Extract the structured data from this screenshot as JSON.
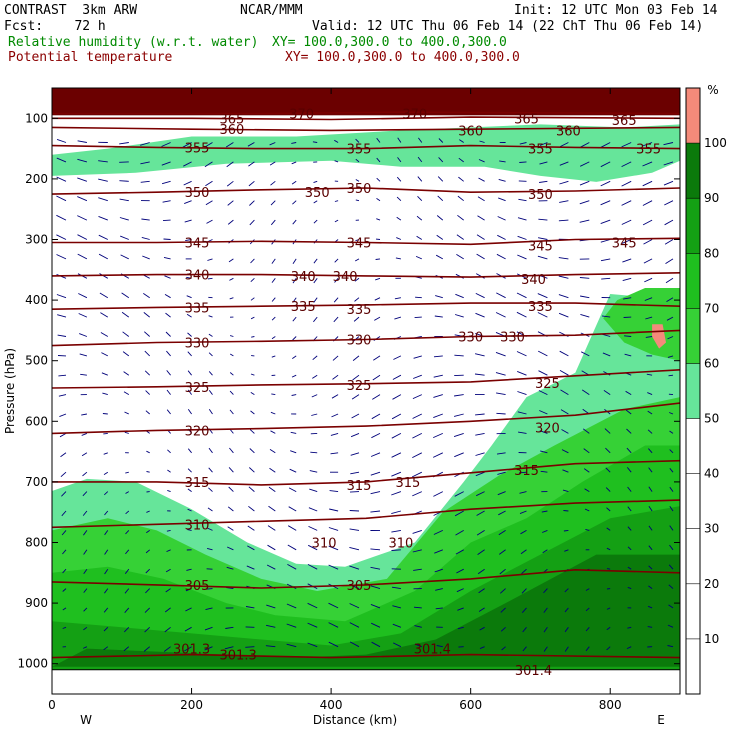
{
  "header": {
    "line1_left": "CONTRAST  3km ARW",
    "line1_mid": "NCAR/MMM",
    "line1_right": "Init: 12 UTC Mon 03 Feb 14",
    "line2_left": "Fcst:    72 h",
    "line2_right": "Valid: 12 UTC Thu 06 Feb 14 (22 ChT Thu 06 Feb 14)",
    "line3_left": "Relative humidity (w.r.t. water)",
    "line3_right": "XY= 100.0,300.0 to 400.0,300.0",
    "line4_left": "Potential temperature",
    "line4_right": "XY= 100.0,300.0 to 400.0,300.0"
  },
  "colors": {
    "rh_fill": [
      "#ffffff",
      "#ffffff",
      "#ffffff",
      "#ffffff",
      "#ffffff",
      "#66e59a",
      "#36d136",
      "#1fbf1f",
      "#14a014",
      "#0b7a0b",
      "#f48a7a"
    ],
    "theta_line": "#7a0000",
    "wind_arrow": "#00007a",
    "top_band": "#6b0000"
  },
  "chart_data": {
    "type": "heatmap",
    "xlabel": "Distance (km)",
    "ylabel": "Pressure (hPa)",
    "xlim": [
      0,
      900
    ],
    "ylim": [
      1050,
      50
    ],
    "x_ticks": [
      0,
      200,
      400,
      600,
      800
    ],
    "x_tick_labels": [
      "0",
      "200",
      "400",
      "600",
      "800"
    ],
    "y_ticks": [
      100,
      200,
      300,
      400,
      500,
      600,
      700,
      800,
      900,
      1000
    ],
    "y_tick_labels": [
      "100",
      "200",
      "300",
      "400",
      "500",
      "600",
      "700",
      "800",
      "900",
      "1000"
    ],
    "x_end_labels": {
      "left": "W",
      "right": "E"
    },
    "colorbar": {
      "unit": "%",
      "levels": [
        10,
        20,
        30,
        40,
        50,
        60,
        70,
        80,
        90,
        100
      ],
      "labels": [
        "10",
        "20",
        "30",
        "40",
        "50",
        "60",
        "70",
        "80",
        "90",
        "100"
      ]
    },
    "isentropes": [
      {
        "value": 301,
        "label": "301.3",
        "points": [
          [
            0,
            990
          ],
          [
            200,
            985
          ],
          [
            400,
            990
          ],
          [
            600,
            985
          ],
          [
            900,
            990
          ]
        ]
      },
      {
        "value": 305,
        "label": "305",
        "points": [
          [
            0,
            865
          ],
          [
            150,
            870
          ],
          [
            300,
            875
          ],
          [
            450,
            870
          ],
          [
            600,
            860
          ],
          [
            750,
            845
          ],
          [
            900,
            850
          ]
        ]
      },
      {
        "value": 310,
        "label": "310",
        "points": [
          [
            0,
            775
          ],
          [
            150,
            770
          ],
          [
            300,
            765
          ],
          [
            450,
            760
          ],
          [
            600,
            745
          ],
          [
            750,
            735
          ],
          [
            900,
            730
          ]
        ]
      },
      {
        "value": 315,
        "label": "315",
        "points": [
          [
            0,
            700
          ],
          [
            150,
            700
          ],
          [
            300,
            705
          ],
          [
            450,
            700
          ],
          [
            600,
            685
          ],
          [
            750,
            670
          ],
          [
            900,
            665
          ]
        ]
      },
      {
        "value": 320,
        "label": "320",
        "points": [
          [
            0,
            620
          ],
          [
            150,
            615
          ],
          [
            300,
            612
          ],
          [
            450,
            608
          ],
          [
            600,
            600
          ],
          [
            750,
            590
          ],
          [
            900,
            570
          ]
        ]
      },
      {
        "value": 325,
        "label": "325",
        "points": [
          [
            0,
            545
          ],
          [
            150,
            543
          ],
          [
            300,
            540
          ],
          [
            450,
            538
          ],
          [
            600,
            535
          ],
          [
            750,
            525
          ],
          [
            900,
            515
          ]
        ]
      },
      {
        "value": 330,
        "label": "330",
        "points": [
          [
            0,
            475
          ],
          [
            150,
            470
          ],
          [
            300,
            468
          ],
          [
            450,
            465
          ],
          [
            600,
            460
          ],
          [
            750,
            458
          ],
          [
            900,
            450
          ]
        ]
      },
      {
        "value": 335,
        "label": "335",
        "points": [
          [
            0,
            415
          ],
          [
            150,
            412
          ],
          [
            300,
            410
          ],
          [
            450,
            408
          ],
          [
            600,
            405
          ],
          [
            750,
            405
          ],
          [
            900,
            410
          ]
        ]
      },
      {
        "value": 340,
        "label": "340",
        "points": [
          [
            0,
            360
          ],
          [
            150,
            358
          ],
          [
            300,
            358
          ],
          [
            450,
            360
          ],
          [
            600,
            362
          ],
          [
            750,
            358
          ],
          [
            900,
            355
          ]
        ]
      },
      {
        "value": 345,
        "label": "345",
        "points": [
          [
            0,
            305
          ],
          [
            150,
            305
          ],
          [
            300,
            303
          ],
          [
            450,
            305
          ],
          [
            600,
            308
          ],
          [
            750,
            300
          ],
          [
            900,
            298
          ]
        ]
      },
      {
        "value": 350,
        "label": "350",
        "points": [
          [
            0,
            225
          ],
          [
            150,
            222
          ],
          [
            300,
            218
          ],
          [
            450,
            215
          ],
          [
            600,
            222
          ],
          [
            750,
            220
          ],
          [
            900,
            215
          ]
        ]
      },
      {
        "value": 355,
        "label": "355",
        "points": [
          [
            0,
            145
          ],
          [
            150,
            148
          ],
          [
            300,
            150
          ],
          [
            450,
            150
          ],
          [
            600,
            145
          ],
          [
            750,
            148
          ],
          [
            900,
            150
          ]
        ]
      },
      {
        "value": 360,
        "label": "360",
        "points": [
          [
            0,
            115
          ],
          [
            200,
            118
          ],
          [
            400,
            120
          ],
          [
            600,
            118
          ],
          [
            900,
            115
          ]
        ]
      },
      {
        "value": 365,
        "label": "365",
        "points": [
          [
            0,
            100
          ],
          [
            200,
            100
          ],
          [
            400,
            102
          ],
          [
            600,
            98
          ],
          [
            900,
            100
          ]
        ]
      },
      {
        "value": 370,
        "label": "370",
        "points": [
          [
            0,
            92
          ],
          [
            300,
            92
          ],
          [
            500,
            90
          ],
          [
            900,
            92
          ]
        ]
      }
    ],
    "extra_labels": [
      {
        "text": "301.3",
        "x": 200,
        "p": 975
      },
      {
        "text": "301.4",
        "x": 545,
        "p": 975
      },
      {
        "text": "301.4",
        "x": 690,
        "p": 1010
      },
      {
        "text": "305",
        "x": 440,
        "p": 870
      },
      {
        "text": "310",
        "x": 500,
        "p": 800
      },
      {
        "text": "310",
        "x": 390,
        "p": 800
      },
      {
        "text": "315",
        "x": 510,
        "p": 700
      },
      {
        "text": "315",
        "x": 440,
        "p": 705
      },
      {
        "text": "315",
        "x": 680,
        "p": 680
      },
      {
        "text": "320",
        "x": 710,
        "p": 610
      },
      {
        "text": "325",
        "x": 440,
        "p": 540
      },
      {
        "text": "325",
        "x": 710,
        "p": 537
      },
      {
        "text": "330",
        "x": 440,
        "p": 465
      },
      {
        "text": "330",
        "x": 600,
        "p": 460
      },
      {
        "text": "330",
        "x": 660,
        "p": 460
      },
      {
        "text": "335",
        "x": 360,
        "p": 410
      },
      {
        "text": "335",
        "x": 440,
        "p": 415
      },
      {
        "text": "335",
        "x": 700,
        "p": 410
      },
      {
        "text": "340",
        "x": 360,
        "p": 360
      },
      {
        "text": "340",
        "x": 420,
        "p": 360
      },
      {
        "text": "340",
        "x": 690,
        "p": 365
      },
      {
        "text": "345",
        "x": 440,
        "p": 305
      },
      {
        "text": "345",
        "x": 700,
        "p": 310
      },
      {
        "text": "345",
        "x": 820,
        "p": 305
      },
      {
        "text": "350",
        "x": 380,
        "p": 222
      },
      {
        "text": "350",
        "x": 440,
        "p": 215
      },
      {
        "text": "350",
        "x": 700,
        "p": 225
      },
      {
        "text": "355",
        "x": 440,
        "p": 150
      },
      {
        "text": "355",
        "x": 700,
        "p": 150
      },
      {
        "text": "355",
        "x": 855,
        "p": 150
      },
      {
        "text": "360",
        "x": 600,
        "p": 120
      },
      {
        "text": "360",
        "x": 740,
        "p": 120
      },
      {
        "text": "365",
        "x": 680,
        "p": 100
      },
      {
        "text": "365",
        "x": 820,
        "p": 103
      },
      {
        "text": "370",
        "x": 520,
        "p": 92
      }
    ],
    "rh_regions": [
      {
        "level": 5,
        "points": [
          [
            0,
            1010
          ],
          [
            0,
            715
          ],
          [
            50,
            695
          ],
          [
            120,
            700
          ],
          [
            200,
            745
          ],
          [
            280,
            800
          ],
          [
            350,
            835
          ],
          [
            420,
            840
          ],
          [
            520,
            800
          ],
          [
            590,
            700
          ],
          [
            630,
            640
          ],
          [
            680,
            560
          ],
          [
            750,
            520
          ],
          [
            800,
            390
          ],
          [
            900,
            400
          ],
          [
            900,
            1010
          ]
        ]
      },
      {
        "level": 6,
        "points": [
          [
            0,
            1010
          ],
          [
            0,
            780
          ],
          [
            80,
            760
          ],
          [
            150,
            780
          ],
          [
            220,
            820
          ],
          [
            300,
            860
          ],
          [
            380,
            880
          ],
          [
            480,
            860
          ],
          [
            560,
            750
          ],
          [
            640,
            690
          ],
          [
            720,
            640
          ],
          [
            820,
            580
          ],
          [
            900,
            560
          ],
          [
            900,
            1010
          ]
        ]
      },
      {
        "level": 7,
        "points": [
          [
            0,
            1010
          ],
          [
            0,
            850
          ],
          [
            80,
            840
          ],
          [
            160,
            860
          ],
          [
            250,
            900
          ],
          [
            320,
            920
          ],
          [
            420,
            930
          ],
          [
            520,
            880
          ],
          [
            600,
            800
          ],
          [
            680,
            760
          ],
          [
            760,
            700
          ],
          [
            850,
            640
          ],
          [
            900,
            640
          ],
          [
            900,
            1010
          ]
        ]
      },
      {
        "level": 8,
        "points": [
          [
            0,
            1010
          ],
          [
            0,
            930
          ],
          [
            100,
            940
          ],
          [
            200,
            950
          ],
          [
            300,
            960
          ],
          [
            400,
            970
          ],
          [
            500,
            950
          ],
          [
            600,
            880
          ],
          [
            700,
            820
          ],
          [
            800,
            760
          ],
          [
            900,
            740
          ],
          [
            900,
            1010
          ]
        ]
      },
      {
        "level": 9,
        "points": [
          [
            0,
            1005
          ],
          [
            50,
            975
          ],
          [
            150,
            980
          ],
          [
            250,
            985
          ],
          [
            350,
            990
          ],
          [
            450,
            985
          ],
          [
            550,
            960
          ],
          [
            650,
            900
          ],
          [
            780,
            820
          ],
          [
            900,
            820
          ],
          [
            900,
            1005
          ]
        ]
      },
      {
        "level": 5,
        "points": [
          [
            80,
            150
          ],
          [
            0,
            160
          ],
          [
            0,
            195
          ],
          [
            120,
            190
          ],
          [
            250,
            175
          ],
          [
            400,
            170
          ],
          [
            500,
            180
          ],
          [
            620,
            180
          ],
          [
            700,
            195
          ],
          [
            780,
            205
          ],
          [
            860,
            190
          ],
          [
            900,
            170
          ],
          [
            900,
            110
          ],
          [
            820,
            115
          ],
          [
            700,
            110
          ],
          [
            600,
            115
          ],
          [
            500,
            120
          ],
          [
            350,
            130
          ],
          [
            200,
            130
          ]
        ]
      },
      {
        "level": 6,
        "points": [
          [
            850,
            380
          ],
          [
            810,
            400
          ],
          [
            790,
            430
          ],
          [
            820,
            470
          ],
          [
            860,
            490
          ],
          [
            900,
            500
          ],
          [
            900,
            380
          ]
        ]
      },
      {
        "level": 10,
        "points": [
          [
            860,
            440
          ],
          [
            875,
            440
          ],
          [
            880,
            470
          ],
          [
            870,
            480
          ],
          [
            860,
            460
          ]
        ]
      }
    ]
  }
}
